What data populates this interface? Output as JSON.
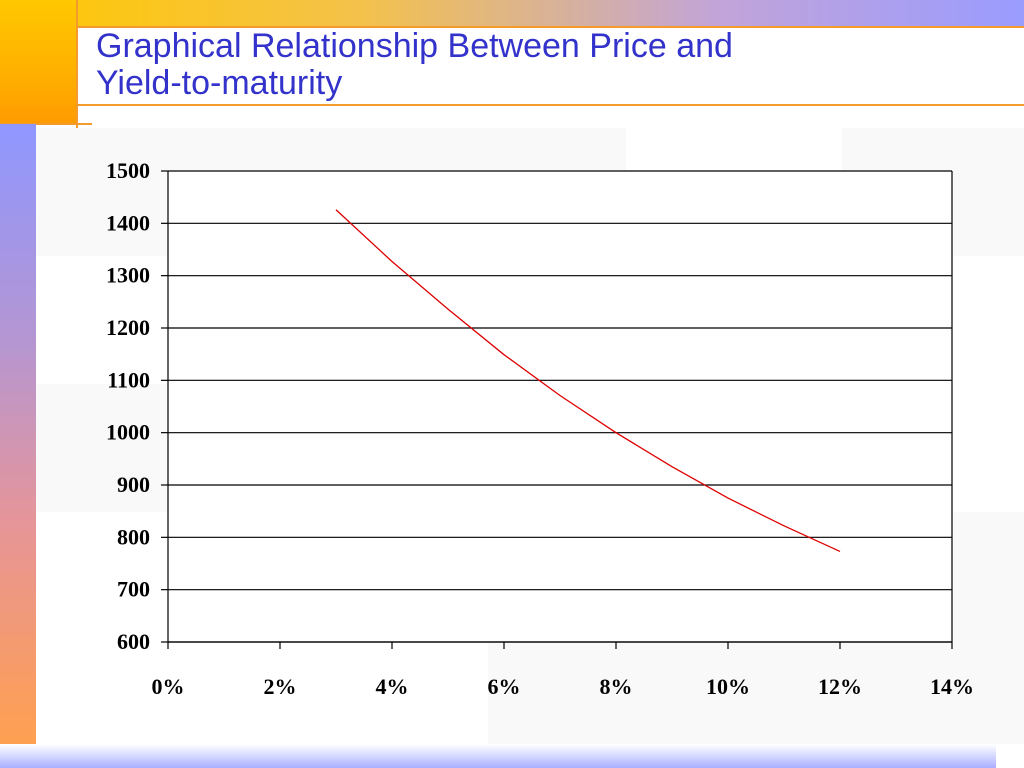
{
  "title_lines": [
    "Graphical Relationship Between Price and",
    "Yield-to-maturity"
  ],
  "colors": {
    "title": "#3333cc",
    "accent_orange": "#f59b2b",
    "series_line": "#dd0000"
  },
  "chart_data": {
    "type": "line",
    "title": "",
    "xlabel": "",
    "ylabel": "",
    "xlim": [
      0,
      14
    ],
    "ylim": [
      600,
      1500
    ],
    "x_ticks": [
      "0%",
      "2%",
      "4%",
      "6%",
      "8%",
      "10%",
      "12%",
      "14%"
    ],
    "y_ticks": [
      "1500",
      "1400",
      "1300",
      "1200",
      "1100",
      "1000",
      "900",
      "800",
      "700",
      "600"
    ],
    "grid": "horizontal",
    "legend": "none",
    "series": [
      {
        "x": [
          3,
          4,
          5,
          6,
          7,
          8,
          9,
          10,
          11,
          12
        ],
        "y": [
          1426,
          1327,
          1236,
          1149,
          1071,
          1000,
          935,
          875,
          822,
          773
        ]
      }
    ]
  }
}
